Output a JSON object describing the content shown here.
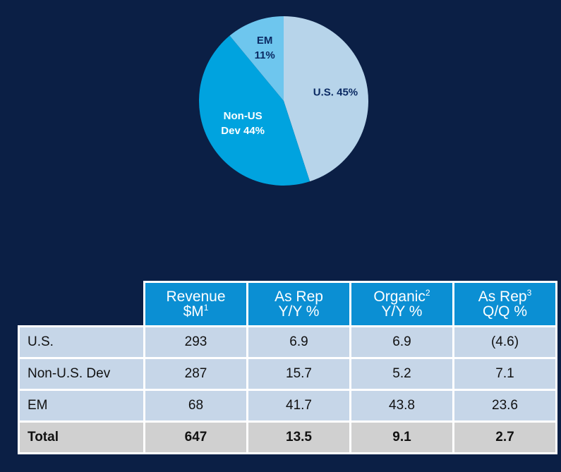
{
  "chart_data": {
    "type": "pie",
    "slices": [
      {
        "label": "U.S.",
        "value": 45,
        "display": "U.S. 45%",
        "color": "#b7d4ea"
      },
      {
        "label": "Non-US Dev",
        "value": 44,
        "display_line1": "Non-US",
        "display_line2": "Dev 44%",
        "color": "#00a3df"
      },
      {
        "label": "EM",
        "value": 11,
        "display_line1": "EM",
        "display_line2": "11%",
        "color": "#6ec6ee"
      }
    ]
  },
  "table": {
    "headers": [
      {
        "line1": "Revenue",
        "line2": "$M",
        "sup": "1"
      },
      {
        "line1": "As Rep",
        "line2": "Y/Y %",
        "sup": ""
      },
      {
        "line1": "Organic",
        "line2": "Y/Y %",
        "sup": "2"
      },
      {
        "line1": "As Rep",
        "line2": "Q/Q %",
        "sup": "3"
      }
    ],
    "rows": [
      {
        "label": "U.S.",
        "values": [
          "293",
          "6.9",
          "6.9",
          "(4.6)"
        ]
      },
      {
        "label": "Non-U.S. Dev",
        "values": [
          "287",
          "15.7",
          "5.2",
          "7.1"
        ]
      },
      {
        "label": "EM",
        "values": [
          "68",
          "41.7",
          "43.8",
          "23.6"
        ]
      },
      {
        "label": "Total",
        "values": [
          "647",
          "13.5",
          "9.1",
          "2.7"
        ]
      }
    ]
  },
  "colors": {
    "background": "#0b1f45",
    "header": "#0b8fd3",
    "row": "#c6d6e8",
    "total_row": "#d0d0d0"
  }
}
